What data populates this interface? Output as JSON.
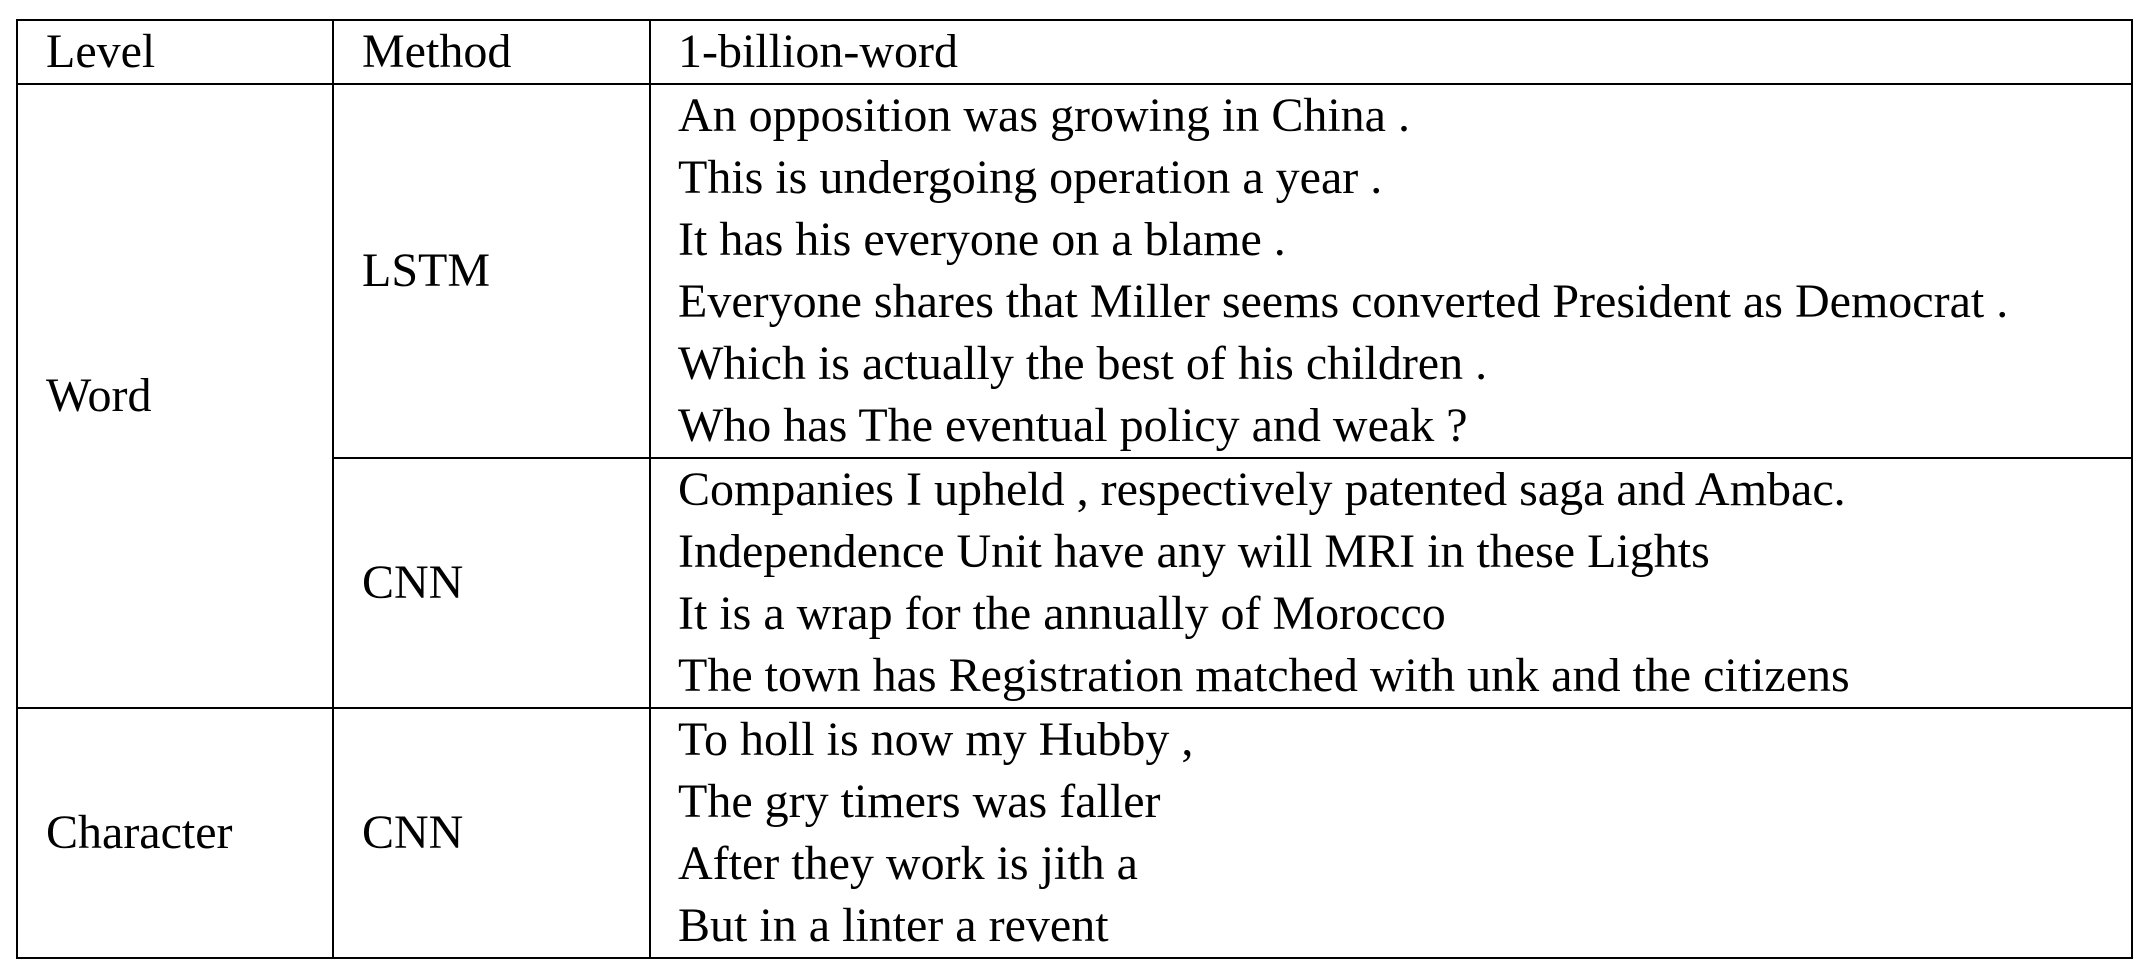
{
  "header": {
    "level": "Level",
    "method": "Method",
    "dataset": "1-billion-word"
  },
  "groups": [
    {
      "level": "Word",
      "methods": [
        {
          "name": "LSTM",
          "samples": [
            "An opposition was growing in China .",
            "This is undergoing operation a year .",
            "It has his everyone on a blame .",
            "Everyone shares that Miller seems converted President as Democrat .",
            "Which is actually the best of his children .",
            "Who has The eventual policy and weak ?"
          ]
        },
        {
          "name": "CNN",
          "samples": [
            "Companies I upheld , respectively patented saga and Ambac.",
            "Independence Unit have any will MRI in these Lights",
            "It is a wrap for the annually of Morocco",
            "The town has Registration matched with unk and the citizens"
          ]
        }
      ]
    },
    {
      "level": "Character",
      "methods": [
        {
          "name": "CNN",
          "samples": [
            "To holl is now my Hubby ,",
            "The gry timers was faller",
            "After they work is jith a",
            "But in a linter a revent"
          ]
        }
      ]
    }
  ]
}
